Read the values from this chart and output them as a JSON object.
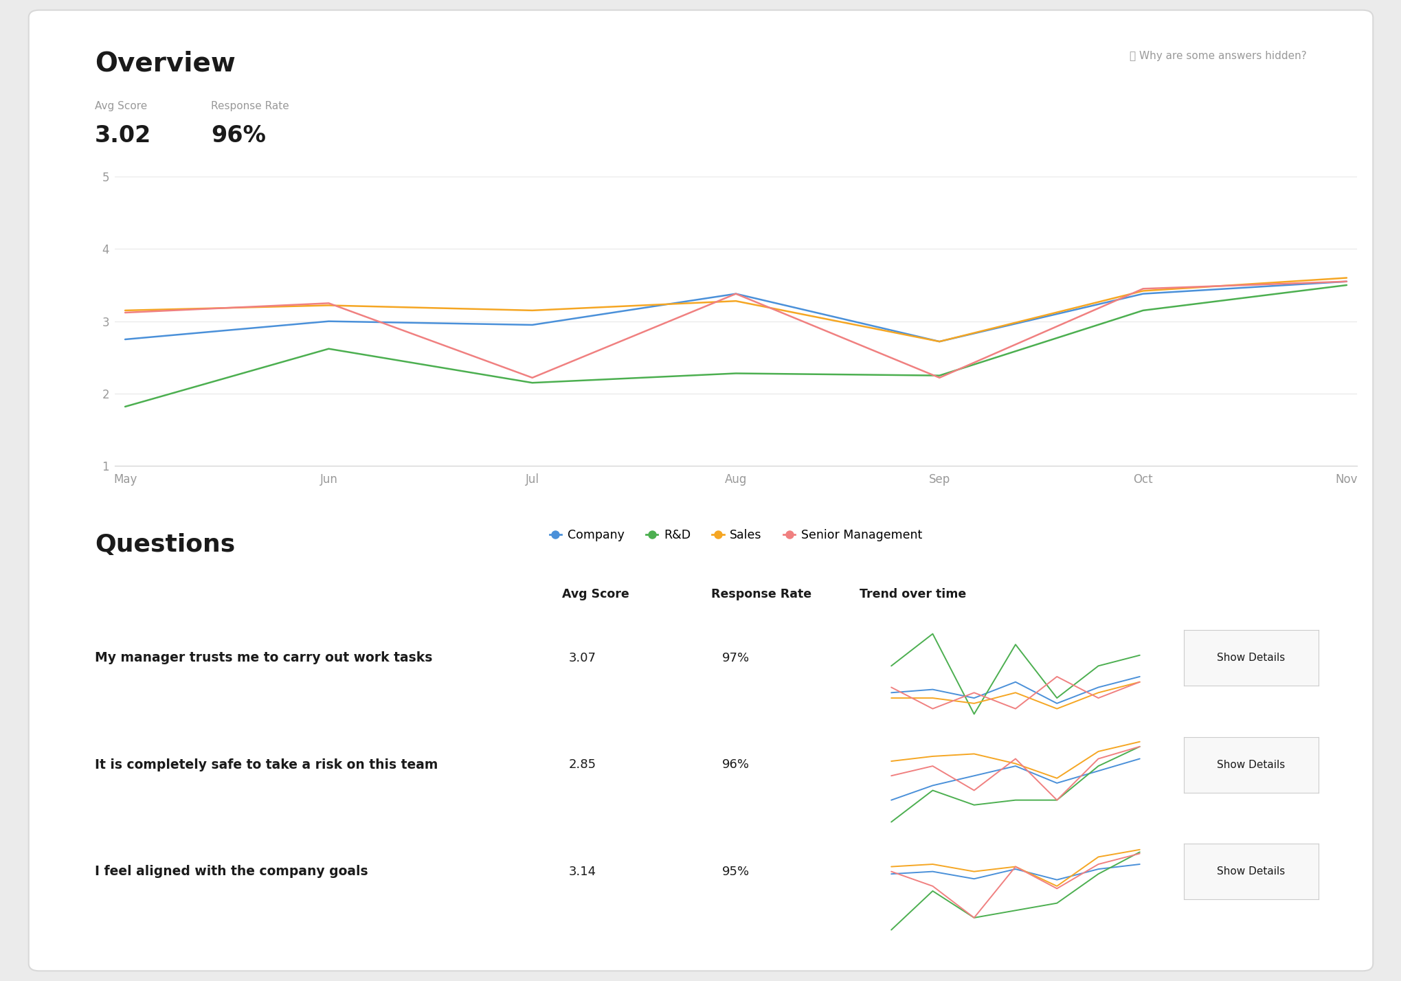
{
  "overview_title": "Overview",
  "avg_score_label": "Avg Score",
  "avg_score_value": "3.02",
  "response_rate_label": "Response Rate",
  "response_rate_value": "96%",
  "hidden_text": "ⓘ Why are some answers hidden?",
  "x_labels": [
    "May",
    "Jun",
    "Jul",
    "Aug",
    "Sep",
    "Oct",
    "Nov"
  ],
  "x_values": [
    0,
    1,
    2,
    3,
    4,
    5,
    6
  ],
  "series": {
    "Company": {
      "color": "#4a90d9",
      "values": [
        2.75,
        3.0,
        2.95,
        3.38,
        2.72,
        3.38,
        3.55
      ]
    },
    "R&D": {
      "color": "#4caf50",
      "values": [
        1.82,
        2.62,
        2.15,
        2.28,
        2.25,
        3.15,
        3.5
      ]
    },
    "Sales": {
      "color": "#f5a623",
      "values": [
        3.15,
        3.22,
        3.15,
        3.28,
        2.72,
        3.42,
        3.6
      ]
    },
    "Senior Management": {
      "color": "#f08080",
      "values": [
        3.12,
        3.25,
        2.22,
        3.38,
        2.22,
        3.45,
        3.55
      ]
    }
  },
  "ylim": [
    1,
    5
  ],
  "yticks": [
    1,
    2,
    3,
    4,
    5
  ],
  "legend_names": [
    "Company",
    "R&D",
    "Sales",
    "Senior Management"
  ],
  "questions_title": "Questions",
  "questions_header": [
    "Avg Score",
    "Response Rate",
    "Trend over time"
  ],
  "questions": [
    {
      "text": "My manager trusts me to carry out work tasks",
      "avg_score": "3.07",
      "response_rate": "97%",
      "trend": {
        "Company": [
          3.05,
          3.08,
          3.0,
          3.15,
          2.95,
          3.1,
          3.2
        ],
        "R&D": [
          3.3,
          3.6,
          2.85,
          3.5,
          3.0,
          3.3,
          3.4
        ],
        "Sales": [
          3.0,
          3.0,
          2.95,
          3.05,
          2.9,
          3.05,
          3.15
        ],
        "Senior Management": [
          3.1,
          2.9,
          3.05,
          2.9,
          3.2,
          3.0,
          3.15
        ]
      }
    },
    {
      "text": "It is completely safe to take a risk on this team",
      "avg_score": "2.85",
      "response_rate": "96%",
      "trend": {
        "Company": [
          2.2,
          2.5,
          2.7,
          2.9,
          2.55,
          2.8,
          3.05
        ],
        "R&D": [
          1.75,
          2.4,
          2.1,
          2.2,
          2.2,
          2.9,
          3.3
        ],
        "Sales": [
          3.0,
          3.1,
          3.15,
          2.95,
          2.65,
          3.2,
          3.4
        ],
        "Senior Management": [
          2.7,
          2.9,
          2.4,
          3.05,
          2.2,
          3.05,
          3.3
        ]
      }
    },
    {
      "text": "I feel aligned with the company goals",
      "avg_score": "3.14",
      "response_rate": "95%",
      "trend": {
        "Company": [
          3.0,
          3.05,
          2.9,
          3.1,
          2.88,
          3.1,
          3.2
        ],
        "R&D": [
          1.85,
          2.65,
          2.1,
          2.25,
          2.4,
          3.0,
          3.45
        ],
        "Sales": [
          3.15,
          3.2,
          3.05,
          3.15,
          2.75,
          3.35,
          3.5
        ],
        "Senior Management": [
          3.05,
          2.75,
          2.1,
          3.15,
          2.7,
          3.2,
          3.42
        ]
      }
    }
  ],
  "series_colors": {
    "Company": "#4a90d9",
    "R&D": "#4caf50",
    "Sales": "#f5a623",
    "Senior Management": "#f08080"
  },
  "bg_color": "#ebebeb",
  "card_color": "#ffffff",
  "text_dark": "#1a1a1a",
  "text_medium": "#333333",
  "text_gray": "#999999",
  "button_bg": "#f8f8f8",
  "button_border": "#cccccc"
}
